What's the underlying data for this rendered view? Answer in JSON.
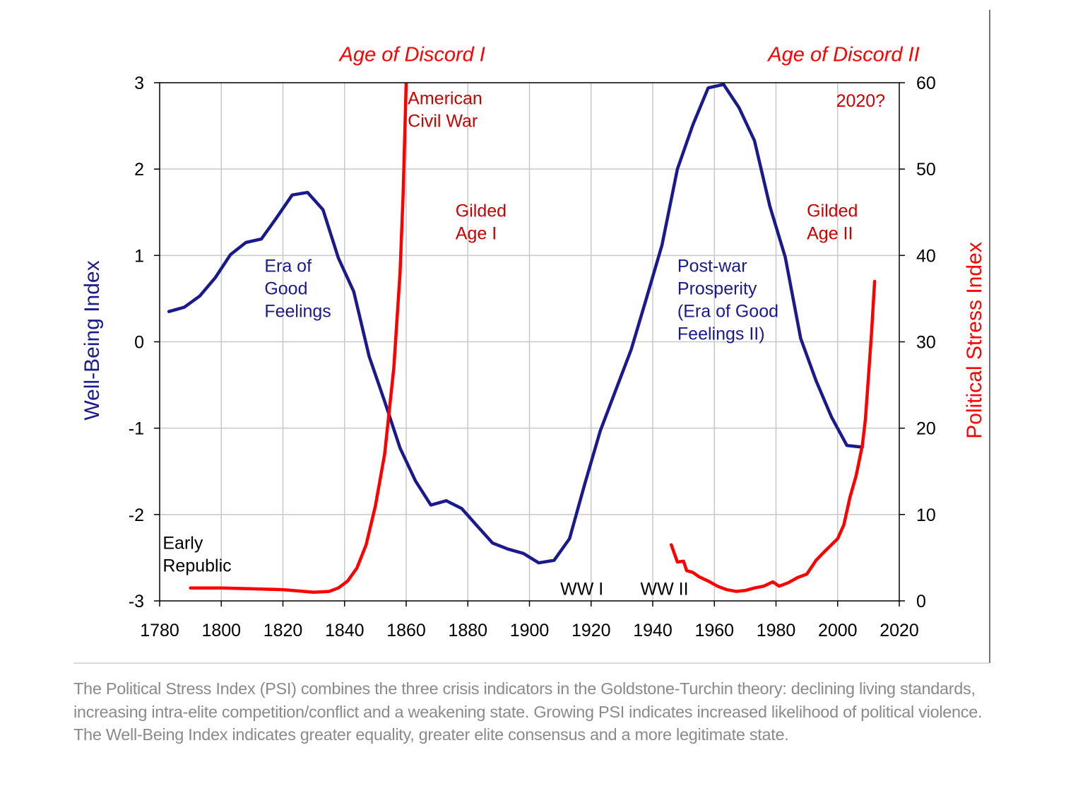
{
  "caption": "The Political Stress Index (PSI) combines the three crisis indicators in the Goldstone-Turchin theory: declining living standards, increasing intra-elite competition/conflict and a weakening state. Growing PSI indicates increased likelihood of political violence. The Well-Being Index indicates greater equality, greater elite consensus and a more legitimate state.",
  "colors": {
    "wellbeing": "#1a1a8c",
    "stress": "#ff0000",
    "annot_red": "#cc0000",
    "grid": "#c8c8c8"
  },
  "chart_data": {
    "type": "line",
    "xlim": [
      1780,
      2020
    ],
    "x_ticks": [
      1780,
      1800,
      1820,
      1840,
      1860,
      1880,
      1900,
      1920,
      1940,
      1960,
      1980,
      2000,
      2020
    ],
    "x_tick_labels": [
      "1780",
      "1800",
      "1820",
      "1840",
      "1860",
      "1880",
      "1900",
      "1920",
      "1940",
      "1960",
      "1980",
      "2000",
      "2020"
    ],
    "ylabel_left": "Well-Being Index",
    "ylim_left": [
      -3,
      3
    ],
    "y_left_ticks": [
      3,
      2,
      1,
      0,
      -1,
      -2,
      -3
    ],
    "y_left_tick_labels": [
      "3",
      "2",
      "1",
      "0",
      "-1",
      "-2",
      "-3"
    ],
    "ylabel_right": "Political Stress Index",
    "ylim_right": [
      0,
      60
    ],
    "y_right_ticks": [
      60,
      50,
      40,
      30,
      20,
      10,
      0
    ],
    "y_right_tick_labels": [
      "60",
      "50",
      "40",
      "30",
      "20",
      "10",
      "0"
    ],
    "grid": true,
    "series": [
      {
        "name": "Well-Being Index",
        "axis": "left",
        "points": [
          [
            1783,
            0.35
          ],
          [
            1788,
            0.4
          ],
          [
            1793,
            0.53
          ],
          [
            1798,
            0.74
          ],
          [
            1803,
            1.01
          ],
          [
            1808,
            1.15
          ],
          [
            1813,
            1.19
          ],
          [
            1818,
            1.44
          ],
          [
            1823,
            1.7
          ],
          [
            1828,
            1.73
          ],
          [
            1833,
            1.53
          ],
          [
            1838,
            0.97
          ],
          [
            1843,
            0.58
          ],
          [
            1848,
            -0.17
          ],
          [
            1853,
            -0.69
          ],
          [
            1858,
            -1.23
          ],
          [
            1863,
            -1.61
          ],
          [
            1868,
            -1.89
          ],
          [
            1873,
            -1.84
          ],
          [
            1878,
            -1.93
          ],
          [
            1883,
            -2.13
          ],
          [
            1888,
            -2.33
          ],
          [
            1893,
            -2.4
          ],
          [
            1898,
            -2.45
          ],
          [
            1903,
            -2.56
          ],
          [
            1908,
            -2.53
          ],
          [
            1913,
            -2.28
          ],
          [
            1918,
            -1.64
          ],
          [
            1923,
            -1.03
          ],
          [
            1928,
            -0.56
          ],
          [
            1933,
            -0.09
          ],
          [
            1938,
            0.51
          ],
          [
            1943,
            1.12
          ],
          [
            1948,
            2.0
          ],
          [
            1953,
            2.51
          ],
          [
            1958,
            2.94
          ],
          [
            1963,
            2.98
          ],
          [
            1968,
            2.71
          ],
          [
            1973,
            2.33
          ],
          [
            1978,
            1.57
          ],
          [
            1983,
            0.98
          ],
          [
            1988,
            0.04
          ],
          [
            1993,
            -0.45
          ],
          [
            1998,
            -0.87
          ],
          [
            2003,
            -1.2
          ],
          [
            2008,
            -1.22
          ]
        ]
      },
      {
        "name": "Political Stress Index",
        "axis": "right",
        "points": [
          [
            1790,
            1.5
          ],
          [
            1800,
            1.5
          ],
          [
            1810,
            1.4
          ],
          [
            1820,
            1.3
          ],
          [
            1830,
            1.0
          ],
          [
            1835,
            1.1
          ],
          [
            1838,
            1.5
          ],
          [
            1841,
            2.3
          ],
          [
            1844,
            3.8
          ],
          [
            1847,
            6.5
          ],
          [
            1850,
            11
          ],
          [
            1853,
            17
          ],
          [
            1856,
            27
          ],
          [
            1858,
            38
          ],
          [
            1859,
            47
          ],
          [
            1860,
            60
          ],
          null,
          [
            1946,
            6.5
          ],
          [
            1948,
            4.5
          ],
          [
            1950,
            4.6
          ],
          [
            1951,
            3.5
          ],
          [
            1953,
            3.3
          ],
          [
            1955,
            2.8
          ],
          [
            1958,
            2.3
          ],
          [
            1961,
            1.7
          ],
          [
            1964,
            1.3
          ],
          [
            1967,
            1.1
          ],
          [
            1970,
            1.2
          ],
          [
            1973,
            1.5
          ],
          [
            1976,
            1.7
          ],
          [
            1979,
            2.2
          ],
          [
            1981,
            1.7
          ],
          [
            1984,
            2.1
          ],
          [
            1987,
            2.7
          ],
          [
            1990,
            3.1
          ],
          [
            1993,
            4.7
          ],
          [
            1996,
            5.8
          ],
          [
            1998,
            6.5
          ],
          [
            2000,
            7.2
          ],
          [
            2002,
            8.8
          ],
          [
            2004,
            12
          ],
          [
            2006,
            14.5
          ],
          [
            2008,
            18
          ],
          [
            2009,
            21
          ],
          [
            2010,
            26
          ],
          [
            2011,
            31
          ],
          [
            2012,
            37
          ]
        ]
      }
    ],
    "annotations": [
      {
        "text": [
          "Age of Discord I"
        ],
        "x": 1862,
        "y_right": 62.5,
        "align": "middle",
        "color": "red",
        "style": "era"
      },
      {
        "text": [
          "Age of Discord II"
        ],
        "x": 2002,
        "y_right": 62.5,
        "align": "middle",
        "color": "red",
        "style": "era"
      },
      {
        "text": [
          "American",
          "Civil War"
        ],
        "x": 1860.5,
        "y_right": 57.5,
        "align": "start",
        "color": "darkred"
      },
      {
        "text": [
          "2020?"
        ],
        "x": 1999.5,
        "y_right": 57.2,
        "align": "start",
        "color": "darkred"
      },
      {
        "text": [
          "Gilded",
          "Age I"
        ],
        "x": 1876,
        "y_right": 44.5,
        "align": "start",
        "color": "darkred"
      },
      {
        "text": [
          "Gilded",
          "Age II"
        ],
        "x": 1990,
        "y_right": 44.5,
        "align": "start",
        "color": "darkred"
      },
      {
        "text": [
          "Era of",
          "Good",
          "Feelings"
        ],
        "x": 1814,
        "y_right": 38.1,
        "align": "start",
        "color": "blue"
      },
      {
        "text": [
          "Post-war",
          "Prosperity",
          "(Era of Good",
          "Feelings II)"
        ],
        "x": 1948,
        "y_right": 38.1,
        "align": "start",
        "color": "blue"
      },
      {
        "text": [
          "Early",
          "Republic"
        ],
        "x": 1781,
        "y_right": 6.0,
        "align": "start",
        "color": "black"
      },
      {
        "text": [
          "WW I"
        ],
        "x": 1910,
        "y_right": 0.7,
        "align": "start",
        "color": "black"
      },
      {
        "text": [
          "WW II"
        ],
        "x": 1936,
        "y_right": 0.7,
        "align": "start",
        "color": "black"
      }
    ]
  }
}
